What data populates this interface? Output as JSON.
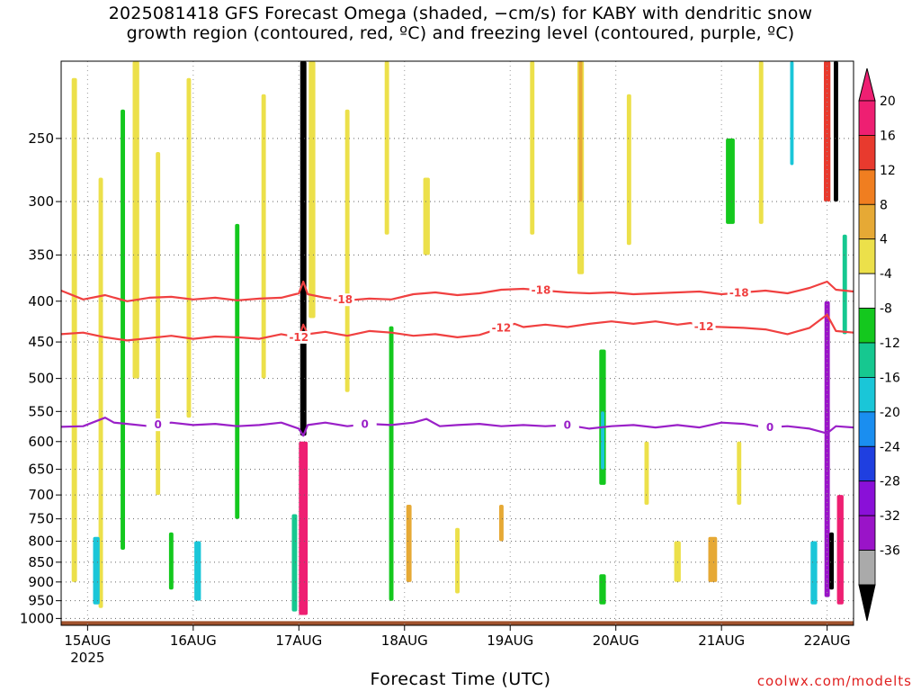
{
  "title": {
    "line1": "2025081418 GFS Forecast Omega (shaded, −cm/s) for KABY with dendritic snow",
    "line2": "growth region (contoured, red, ºC) and freezing level (contoured, purple, ºC)"
  },
  "credit": "coolwx.com/modelts",
  "chart_data": {
    "type": "heatmap",
    "title": "2025081418 GFS Forecast Omega (shaded, −cm/s) for KABY with dendritic snow growth region (contoured, red, ºC) and freezing level (contoured, purple, ºC)",
    "xlabel": "Forecast Time (UTC)",
    "ylabel": "",
    "x_ticks": [
      {
        "label": "15AUG",
        "sublabel": "2025",
        "hour": 6
      },
      {
        "label": "16AUG",
        "hour": 30
      },
      {
        "label": "17AUG",
        "hour": 54
      },
      {
        "label": "18AUG",
        "hour": 78
      },
      {
        "label": "19AUG",
        "hour": 102
      },
      {
        "label": "20AUG",
        "hour": 126
      },
      {
        "label": "21AUG",
        "hour": 150
      },
      {
        "label": "22AUG",
        "hour": 174
      }
    ],
    "xlim_hours": [
      0,
      180
    ],
    "y_ticks": [
      250,
      300,
      350,
      400,
      450,
      500,
      550,
      600,
      650,
      700,
      750,
      800,
      850,
      900,
      950,
      1000
    ],
    "ylim_hpa": [
      200,
      1020
    ],
    "grid": true,
    "colorbar": {
      "labels": [
        "20",
        "16",
        "12",
        "8",
        "4",
        "-4",
        "-8",
        "-12",
        "-16",
        "-20",
        "-24",
        "-28",
        "-32",
        "-36"
      ],
      "bins": [
        {
          "lo": 20,
          "hi": 24,
          "color": "#ee1f72"
        },
        {
          "lo": 16,
          "hi": 20,
          "color": "#e83a2e"
        },
        {
          "lo": 12,
          "hi": 16,
          "color": "#f07e20"
        },
        {
          "lo": 8,
          "hi": 12,
          "color": "#e6a935"
        },
        {
          "lo": 4,
          "hi": 8,
          "color": "#ece04a"
        },
        {
          "lo": -4,
          "hi": 4,
          "color": "#ffffff"
        },
        {
          "lo": -8,
          "hi": -4,
          "color": "#14c81e"
        },
        {
          "lo": -12,
          "hi": -8,
          "color": "#16c890"
        },
        {
          "lo": -16,
          "hi": -12,
          "color": "#1ac6d8"
        },
        {
          "lo": -20,
          "hi": -16,
          "color": "#1a8ef0"
        },
        {
          "lo": -24,
          "hi": -20,
          "color": "#1f3fe0"
        },
        {
          "lo": -28,
          "hi": -24,
          "color": "#8a10d8"
        },
        {
          "lo": -32,
          "hi": -28,
          "color": "#9a14c8"
        },
        {
          "lo": -36,
          "hi": -32,
          "color": "#aaaaaa"
        }
      ],
      "extend_max_color": "#ee1f72",
      "extend_min_color": "#000000"
    },
    "omega_features": [
      {
        "hour": 3,
        "width": 1.2,
        "p_top": 210,
        "p_bot": 900,
        "value": 5
      },
      {
        "hour": 9,
        "width": 1.0,
        "p_top": 280,
        "p_bot": 970,
        "value": 6
      },
      {
        "hour": 8,
        "width": 1.5,
        "p_top": 790,
        "p_bot": 960,
        "value": -14
      },
      {
        "hour": 14,
        "width": 1.0,
        "p_top": 230,
        "p_bot": 820,
        "value": -6
      },
      {
        "hour": 17,
        "width": 1.5,
        "p_top": 200,
        "p_bot": 500,
        "value": 6
      },
      {
        "hour": 22,
        "width": 1.0,
        "p_top": 260,
        "p_bot": 700,
        "value": 6
      },
      {
        "hour": 25,
        "width": 1.0,
        "p_top": 780,
        "p_bot": 920,
        "value": -8
      },
      {
        "hour": 29,
        "width": 1.0,
        "p_top": 210,
        "p_bot": 560,
        "value": 5
      },
      {
        "hour": 31,
        "width": 1.5,
        "p_top": 800,
        "p_bot": 950,
        "value": -16
      },
      {
        "hour": 40,
        "width": 1.0,
        "p_top": 320,
        "p_bot": 750,
        "value": -7
      },
      {
        "hour": 46,
        "width": 1.0,
        "p_top": 220,
        "p_bot": 500,
        "value": 5
      },
      {
        "hour": 53,
        "width": 1.2,
        "p_top": 740,
        "p_bot": 980,
        "value": -10
      },
      {
        "hour": 55,
        "width": 1.4,
        "p_top": 200,
        "p_bot": 590,
        "value": -40
      },
      {
        "hour": 55,
        "width": 2.0,
        "p_top": 600,
        "p_bot": 990,
        "value": 22
      },
      {
        "hour": 57,
        "width": 1.5,
        "p_top": 200,
        "p_bot": 420,
        "value": 5
      },
      {
        "hour": 65,
        "width": 1.0,
        "p_top": 230,
        "p_bot": 520,
        "value": 5
      },
      {
        "hour": 74,
        "width": 1.0,
        "p_top": 200,
        "p_bot": 330,
        "value": 5
      },
      {
        "hour": 75,
        "width": 1.0,
        "p_top": 430,
        "p_bot": 950,
        "value": -8
      },
      {
        "hour": 79,
        "width": 1.2,
        "p_top": 720,
        "p_bot": 900,
        "value": 10
      },
      {
        "hour": 83,
        "width": 1.5,
        "p_top": 280,
        "p_bot": 350,
        "value": 5
      },
      {
        "hour": 90,
        "width": 1.0,
        "p_top": 770,
        "p_bot": 930,
        "value": 6
      },
      {
        "hour": 100,
        "width": 1.0,
        "p_top": 720,
        "p_bot": 800,
        "value": 9
      },
      {
        "hour": 107,
        "width": 1.0,
        "p_top": 200,
        "p_bot": 330,
        "value": 5
      },
      {
        "hour": 118,
        "width": 1.5,
        "p_top": 200,
        "p_bot": 370,
        "value": 5
      },
      {
        "hour": 118,
        "width": 0.8,
        "p_top": 200,
        "p_bot": 300,
        "value": 10
      },
      {
        "hour": 123,
        "width": 1.5,
        "p_top": 460,
        "p_bot": 680,
        "value": -8
      },
      {
        "hour": 123,
        "width": 0.8,
        "p_top": 550,
        "p_bot": 650,
        "value": -14
      },
      {
        "hour": 123,
        "width": 1.5,
        "p_top": 880,
        "p_bot": 960,
        "value": -8
      },
      {
        "hour": 129,
        "width": 1.0,
        "p_top": 220,
        "p_bot": 340,
        "value": 5
      },
      {
        "hour": 133,
        "width": 1.0,
        "p_top": 600,
        "p_bot": 720,
        "value": 5
      },
      {
        "hour": 140,
        "width": 1.5,
        "p_top": 800,
        "p_bot": 900,
        "value": 6
      },
      {
        "hour": 148,
        "width": 2.0,
        "p_top": 790,
        "p_bot": 900,
        "value": 9
      },
      {
        "hour": 152,
        "width": 2.0,
        "p_top": 250,
        "p_bot": 320,
        "value": -6
      },
      {
        "hour": 154,
        "width": 1.0,
        "p_top": 600,
        "p_bot": 720,
        "value": 6
      },
      {
        "hour": 159,
        "width": 1.0,
        "p_top": 200,
        "p_bot": 320,
        "value": 5
      },
      {
        "hour": 166,
        "width": 0.8,
        "p_top": 200,
        "p_bot": 270,
        "value": -14
      },
      {
        "hour": 171,
        "width": 1.5,
        "p_top": 800,
        "p_bot": 960,
        "value": -14
      },
      {
        "hour": 174,
        "width": 1.5,
        "p_top": 200,
        "p_bot": 300,
        "value": 18
      },
      {
        "hour": 174,
        "width": 1.2,
        "p_top": 400,
        "p_bot": 940,
        "value": -30
      },
      {
        "hour": 175,
        "width": 1.0,
        "p_top": 780,
        "p_bot": 920,
        "value": -40
      },
      {
        "hour": 176,
        "width": 1.0,
        "p_top": 200,
        "p_bot": 300,
        "value": -40
      },
      {
        "hour": 177,
        "width": 1.5,
        "p_top": 700,
        "p_bot": 960,
        "value": 22
      },
      {
        "hour": 178,
        "width": 1.0,
        "p_top": 330,
        "p_bot": 440,
        "value": -10
      }
    ],
    "contours": [
      {
        "name": "-18",
        "color": "#f04040",
        "labels": [
          {
            "hour": 64,
            "text": "-18"
          },
          {
            "hour": 109,
            "text": "-18"
          },
          {
            "hour": 154,
            "text": "-18"
          }
        ],
        "points": [
          [
            0,
            388
          ],
          [
            5,
            398
          ],
          [
            10,
            393
          ],
          [
            15,
            400
          ],
          [
            20,
            396
          ],
          [
            25,
            395
          ],
          [
            30,
            398
          ],
          [
            35,
            396
          ],
          [
            40,
            399
          ],
          [
            45,
            397
          ],
          [
            50,
            396
          ],
          [
            54,
            391
          ],
          [
            55,
            378
          ],
          [
            56,
            392
          ],
          [
            60,
            396
          ],
          [
            65,
            399
          ],
          [
            70,
            397
          ],
          [
            75,
            398
          ],
          [
            80,
            392
          ],
          [
            85,
            390
          ],
          [
            90,
            393
          ],
          [
            95,
            391
          ],
          [
            100,
            387
          ],
          [
            105,
            386
          ],
          [
            110,
            388
          ],
          [
            115,
            390
          ],
          [
            120,
            391
          ],
          [
            125,
            390
          ],
          [
            130,
            392
          ],
          [
            135,
            391
          ],
          [
            140,
            390
          ],
          [
            145,
            389
          ],
          [
            150,
            392
          ],
          [
            155,
            390
          ],
          [
            160,
            388
          ],
          [
            165,
            391
          ],
          [
            170,
            385
          ],
          [
            174,
            378
          ],
          [
            176,
            387
          ],
          [
            180,
            389
          ]
        ]
      },
      {
        "name": "-12",
        "color": "#f04040",
        "labels": [
          {
            "hour": 54,
            "text": "-12"
          },
          {
            "hour": 100,
            "text": "-12"
          },
          {
            "hour": 146,
            "text": "-12"
          }
        ],
        "points": [
          [
            0,
            440
          ],
          [
            5,
            438
          ],
          [
            10,
            444
          ],
          [
            15,
            448
          ],
          [
            20,
            445
          ],
          [
            25,
            442
          ],
          [
            30,
            446
          ],
          [
            35,
            443
          ],
          [
            40,
            444
          ],
          [
            45,
            446
          ],
          [
            50,
            440
          ],
          [
            54,
            444
          ],
          [
            55,
            428
          ],
          [
            56,
            440
          ],
          [
            60,
            437
          ],
          [
            65,
            442
          ],
          [
            70,
            436
          ],
          [
            75,
            438
          ],
          [
            80,
            442
          ],
          [
            85,
            440
          ],
          [
            90,
            444
          ],
          [
            95,
            441
          ],
          [
            100,
            432
          ],
          [
            103,
            427
          ],
          [
            105,
            431
          ],
          [
            110,
            428
          ],
          [
            115,
            431
          ],
          [
            120,
            427
          ],
          [
            125,
            424
          ],
          [
            130,
            427
          ],
          [
            135,
            424
          ],
          [
            140,
            428
          ],
          [
            143,
            426
          ],
          [
            145,
            430
          ],
          [
            150,
            431
          ],
          [
            155,
            432
          ],
          [
            160,
            434
          ],
          [
            165,
            440
          ],
          [
            170,
            432
          ],
          [
            174,
            416
          ],
          [
            176,
            436
          ],
          [
            180,
            438
          ]
        ]
      },
      {
        "name": "0",
        "color": "#9a20c8",
        "labels": [
          {
            "hour": 22,
            "text": "0"
          },
          {
            "hour": 69,
            "text": "0"
          },
          {
            "hour": 115,
            "text": "0"
          },
          {
            "hour": 161,
            "text": "0"
          }
        ],
        "points": [
          [
            0,
            575
          ],
          [
            5,
            574
          ],
          [
            10,
            560
          ],
          [
            12,
            568
          ],
          [
            15,
            570
          ],
          [
            20,
            574
          ],
          [
            25,
            568
          ],
          [
            30,
            572
          ],
          [
            35,
            570
          ],
          [
            40,
            574
          ],
          [
            45,
            572
          ],
          [
            50,
            568
          ],
          [
            54,
            578
          ],
          [
            55,
            590
          ],
          [
            56,
            572
          ],
          [
            60,
            568
          ],
          [
            65,
            574
          ],
          [
            70,
            570
          ],
          [
            75,
            572
          ],
          [
            80,
            568
          ],
          [
            83,
            562
          ],
          [
            86,
            574
          ],
          [
            90,
            572
          ],
          [
            95,
            570
          ],
          [
            100,
            574
          ],
          [
            105,
            572
          ],
          [
            110,
            574
          ],
          [
            115,
            572
          ],
          [
            120,
            578
          ],
          [
            125,
            574
          ],
          [
            130,
            572
          ],
          [
            135,
            576
          ],
          [
            140,
            572
          ],
          [
            145,
            576
          ],
          [
            150,
            568
          ],
          [
            155,
            570
          ],
          [
            160,
            576
          ],
          [
            165,
            574
          ],
          [
            170,
            578
          ],
          [
            174,
            586
          ],
          [
            176,
            574
          ],
          [
            180,
            576
          ]
        ]
      }
    ]
  }
}
